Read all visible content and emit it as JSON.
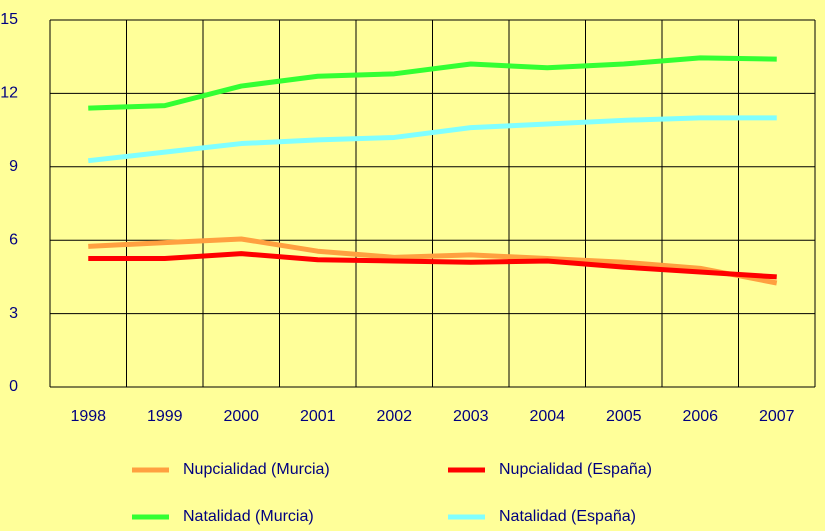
{
  "chart_data": {
    "type": "line",
    "categories": [
      "1998",
      "1999",
      "2000",
      "2001",
      "2002",
      "2003",
      "2004",
      "2005",
      "2006",
      "2007"
    ],
    "series": [
      {
        "name": "Nupcialidad (Murcia)",
        "color": "#FFA040",
        "values": [
          5.75,
          5.9,
          6.05,
          5.55,
          5.3,
          5.4,
          5.25,
          5.1,
          4.85,
          4.25
        ]
      },
      {
        "name": "Nupcialidad (España)",
        "color": "#FF0000",
        "values": [
          5.25,
          5.25,
          5.45,
          5.2,
          5.15,
          5.1,
          5.15,
          4.9,
          4.7,
          4.5
        ]
      },
      {
        "name": "Natalidad (Murcia)",
        "color": "#33FF33",
        "values": [
          11.4,
          11.5,
          12.3,
          12.7,
          12.8,
          13.2,
          13.05,
          13.2,
          13.45,
          13.4
        ]
      },
      {
        "name": "Natalidad (España)",
        "color": "#80FFFF",
        "values": [
          9.25,
          9.6,
          9.95,
          10.1,
          10.2,
          10.6,
          10.75,
          10.9,
          11.0,
          11.0
        ]
      }
    ],
    "ylim": [
      0,
      15
    ],
    "yticks": [
      0,
      3,
      6,
      9,
      12,
      15
    ],
    "grid": true,
    "legend": "bottom"
  }
}
